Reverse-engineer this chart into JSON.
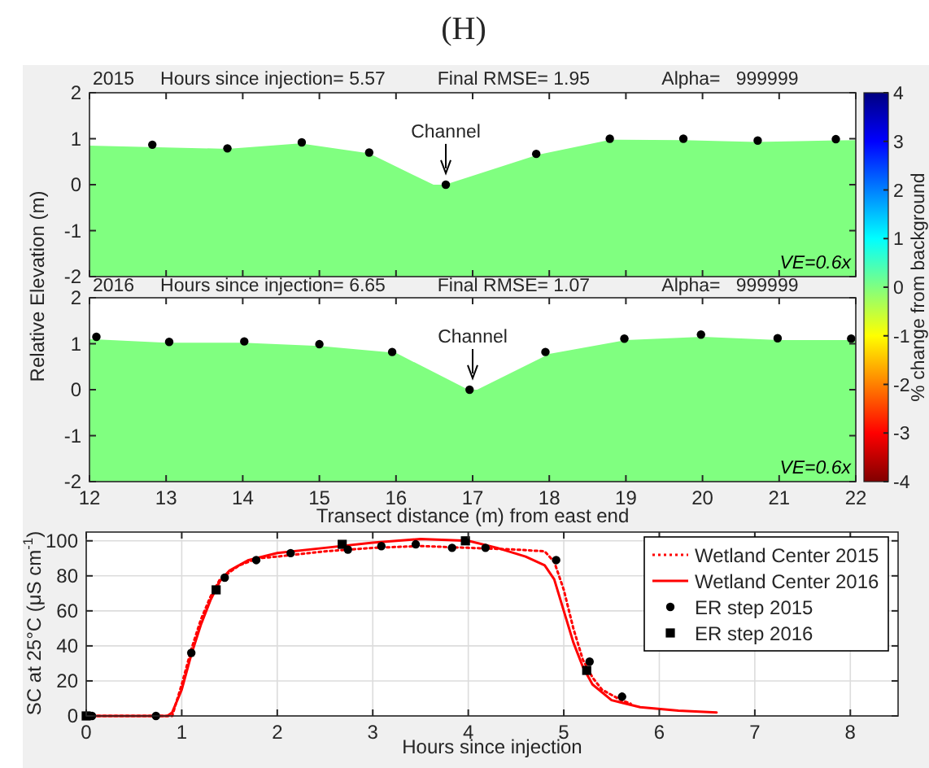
{
  "chart_data": [
    {
      "type": "area",
      "title": "(H)",
      "subtitle": "2015     Hours since injection= 5.57          Final RMSE= 1.95              Alpha=   999999",
      "ylabel": "Relative Elevation (m)",
      "xlim": [
        12,
        22
      ],
      "xticks": [
        12,
        13,
        14,
        15,
        16,
        17,
        18,
        19,
        20,
        21,
        22
      ],
      "ylim": [
        -2,
        2
      ],
      "yticks": [
        -2,
        -1,
        0,
        1,
        2
      ],
      "tick_labels": "y",
      "grid": false,
      "legend": false,
      "clim": [
        -4,
        4
      ],
      "cticks": [
        -4,
        -3,
        -2,
        -1,
        0,
        1,
        2,
        3,
        4
      ],
      "clabel": "% change from background",
      "annotations": [
        {
          "text": "Channel",
          "x": 16.65,
          "y": 0.25
        },
        "VE=0.6x"
      ],
      "bands": [
        {
          "axis": "y",
          "from": -2,
          "to": 0,
          "color": "#80ff80"
        }
      ],
      "series": [
        {
          "color": "#80ff80",
          "x": [
            12,
            13.8,
            14.75,
            15.65,
            16.55,
            17.85,
            18.8,
            19.75,
            20.7,
            22
          ],
          "values": [
            0.85,
            0.78,
            0.9,
            0.68,
            -0.05,
            0.65,
            0.98,
            0.97,
            0.93,
            0.97
          ]
        },
        {
          "type": "scatter",
          "color": "#000000",
          "marker": "circle",
          "x": [
            12.82,
            13.8,
            14.77,
            15.65,
            16.65,
            17.83,
            18.79,
            19.75,
            20.72,
            21.74
          ],
          "values": [
            0.87,
            0.79,
            0.92,
            0.7,
            0,
            0.67,
            1.0,
            1.0,
            0.96,
            0.99
          ]
        }
      ]
    },
    {
      "type": "area",
      "subtitle": "2016     Hours since injection= 6.65          Final RMSE= 1.07              Alpha=   999999",
      "xlabel": "Transect distance (m) from east end",
      "xlim": [
        12,
        22
      ],
      "xticks": [
        12,
        13,
        14,
        15,
        16,
        17,
        18,
        19,
        20,
        21,
        22
      ],
      "ylim": [
        -2,
        2
      ],
      "yticks": [
        -2,
        -1,
        0,
        1,
        2
      ],
      "grid": false,
      "legend": false,
      "annotations": [
        {
          "text": "Channel",
          "x": 17,
          "y": 0.25
        },
        "VE=0.6x"
      ],
      "bands": [
        {
          "axis": "y",
          "from": -2,
          "to": 0,
          "color": "#80ff80"
        }
      ],
      "series": [
        {
          "color": "#80ff80",
          "x": [
            12,
            13,
            14,
            15,
            16,
            17,
            18,
            19,
            20,
            21,
            22
          ],
          "values": [
            1.1,
            1.02,
            1.02,
            0.95,
            0.8,
            -0.05,
            0.78,
            1.08,
            1.15,
            1.08,
            1.08
          ]
        },
        {
          "type": "scatter",
          "color": "#000000",
          "marker": "circle",
          "x": [
            12.09,
            13.04,
            14.02,
            15,
            15.95,
            16.96,
            17.95,
            18.98,
            19.98,
            20.98,
            21.94
          ],
          "values": [
            1.15,
            1.04,
            1.05,
            0.99,
            0.82,
            0,
            0.82,
            1.11,
            1.2,
            1.12,
            1.11
          ]
        }
      ]
    },
    {
      "type": "line",
      "xlabel": "Hours since injection",
      "ylabel": "SC at 25°C (μS cm$^{-1}$)",
      "xlim": [
        0,
        8.5
      ],
      "xticks": [
        0,
        1,
        2,
        3,
        4,
        5,
        6,
        7,
        8
      ],
      "ylim": [
        0,
        105
      ],
      "yticks": [
        0,
        20,
        40,
        60,
        80,
        100
      ],
      "grid": true,
      "legend": "top right",
      "series": [
        {
          "name": "Wetland Center 2015",
          "color": "#ff0000",
          "line_style": "dotted",
          "x": [
            0,
            0.9,
            1.0,
            1.1,
            1.2,
            1.3,
            1.4,
            1.6,
            1.8,
            2,
            2.5,
            3,
            3.5,
            4,
            4.5,
            4.8,
            4.9,
            5.0,
            5.1,
            5.2,
            5.3,
            5.4,
            5.6,
            5.7
          ],
          "values": [
            0,
            0,
            18,
            38,
            55,
            68,
            78,
            86,
            90,
            91,
            94,
            96,
            97,
            96,
            95,
            94,
            88,
            72,
            50,
            32,
            22,
            15,
            9,
            7
          ]
        },
        {
          "name": "Wetland Center 2016",
          "color": "#ff0000",
          "line_style": "solid",
          "x": [
            0,
            0.85,
            0.9,
            1.0,
            1.1,
            1.2,
            1.3,
            1.4,
            1.5,
            1.7,
            2,
            2.5,
            3,
            3.5,
            4,
            4.3,
            4.6,
            4.8,
            4.9,
            5.0,
            5.1,
            5.2,
            5.3,
            5.5,
            5.8,
            6.2,
            6.6
          ],
          "values": [
            0,
            0,
            2,
            15,
            35,
            52,
            66,
            77,
            83,
            89,
            93,
            96,
            99,
            101,
            100,
            96,
            91,
            86,
            78,
            60,
            42,
            28,
            18,
            9,
            5,
            3,
            2
          ]
        },
        {
          "name": "ER step 2015",
          "type": "scatter",
          "color": "#000000",
          "marker": "circle",
          "x": [
            0.06,
            0.73,
            1.1,
            1.45,
            1.78,
            2.14,
            2.74,
            3.09,
            3.45,
            3.83,
            4.18,
            4.92,
            5.27,
            5.61
          ],
          "values": [
            0,
            0,
            36,
            79,
            89,
            93,
            95,
            97,
            98,
            96,
            96,
            89,
            31,
            11
          ]
        },
        {
          "name": "ER step 2016",
          "type": "scatter",
          "color": "#000000",
          "marker": "square",
          "x": [
            0,
            1.36,
            2.68,
            3.97,
            5.24
          ],
          "values": [
            0,
            72,
            98,
            100,
            26
          ]
        }
      ]
    }
  ]
}
